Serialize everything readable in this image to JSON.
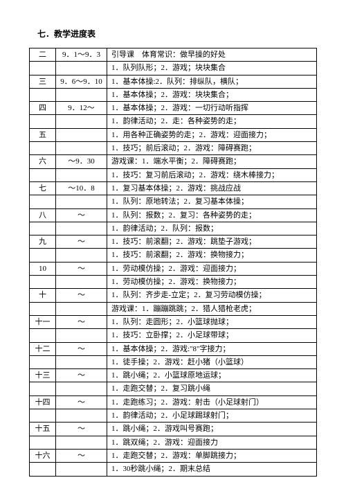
{
  "heading": "七．教学进度表",
  "columns": {
    "widths": {
      "week": 38,
      "date": 74
    },
    "border_color": "#000000",
    "background_color": "#ffffff",
    "text_color": "#000000",
    "fontsize": 11
  },
  "rows": [
    {
      "week": "二",
      "date": "9．1～9．3",
      "content": "引导课　体育常识：做早操的好处"
    },
    {
      "week": "",
      "date": "",
      "content": "1．队列队形；2．游戏；块块集合"
    },
    {
      "week": "三",
      "date": "9．6～9．10",
      "content": "1．基本体操:2．队列：排纵队，横队；"
    },
    {
      "week": "",
      "date": "",
      "content": "1．基本体操；2．游戏：块块集合；"
    },
    {
      "week": "四",
      "date": "9．12～",
      "content": "1．基本体操；2．游戏：一切行动听指挥"
    },
    {
      "week": "",
      "date": "",
      "content": "1．韵律活动；2．走：各种姿势的走；"
    },
    {
      "week": "五",
      "date": "",
      "content": "1．用各种正确姿势的走；2．游戏：迎面接力；"
    },
    {
      "week": "",
      "date": "",
      "content": "1．技巧；前后滚动；2．游戏：障碍赛跑；"
    },
    {
      "week": "六",
      "date": "～9．30",
      "content": "游戏课：1．端水平衡；2．障碍赛跑；"
    },
    {
      "week": "",
      "date": "",
      "content": "1．技巧：复习前后滚动；2．游戏：绕木棒接力；"
    },
    {
      "week": "七",
      "date": "～10．8",
      "content": "1．复习基本体操；2．游戏：挑战应战"
    },
    {
      "week": "",
      "date": "",
      "content": "1．队列：原地转法；2．复习基本体操；"
    },
    {
      "week": "八",
      "date": "～",
      "content": "1．队列：报数；2．复习：各种姿势的走；"
    },
    {
      "week": "",
      "date": "",
      "content": "1．韵律活动；2．队列：报数；"
    },
    {
      "week": "九",
      "date": "～",
      "content": "1．技巧：前滚翻；2．游戏：跳垫子游戏；"
    },
    {
      "week": "",
      "date": "",
      "content": "1．技巧：前滚翻；2．游戏：换物接力；"
    },
    {
      "week": "10",
      "date": "～",
      "content": "1．劳动模仿操；2．游戏：迎面接力；"
    },
    {
      "week": "",
      "date": "",
      "content": "1．劳动模仿操；2．游戏：换物接力；"
    },
    {
      "week": "十",
      "date": "～",
      "content": "1．队列：齐步走-立定；2．复习劳动模仿操；"
    },
    {
      "week": "",
      "date": "",
      "content": "游戏课：1．蹦蹦跳跳；2．猎人猎枪老虎；"
    },
    {
      "week": "十一",
      "date": "～",
      "content": "1．队列：走圆形；2．小篮球抛球；"
    },
    {
      "week": "",
      "date": "",
      "content": "1．技巧：立卧撑；2．小足球带球；"
    },
    {
      "week": "十二",
      "date": "～",
      "content": "1．基本体操；2．游戏:\"8\"字接力；"
    },
    {
      "week": "",
      "date": "",
      "content": "1．徒手操；2．游戏：赶小猪（小篮球）"
    },
    {
      "week": "十三",
      "date": "～",
      "content": "1．跳小绳；2．小篮球原地运球；"
    },
    {
      "week": "",
      "date": "",
      "content": "1．走跑交替；2．复习跳小绳"
    },
    {
      "week": "十四",
      "date": "～",
      "content": "1．走跑练习；2．游戏：射击（小足球射门）"
    },
    {
      "week": "",
      "date": "",
      "content": "1．韵律活动；2．小足球踢球射门；"
    },
    {
      "week": "十五",
      "date": "～",
      "content": "1．跳小绳；2．游戏叫号赛跑；"
    },
    {
      "week": "",
      "date": "",
      "content": "1．跳双绳；2．游戏：迎面接力"
    },
    {
      "week": "十六",
      "date": "～",
      "content": "1．走跑交替；2．游戏：单脚跳接力；"
    },
    {
      "week": "",
      "date": "",
      "content": "1．30秒跳小绳；2．期末总结"
    }
  ]
}
